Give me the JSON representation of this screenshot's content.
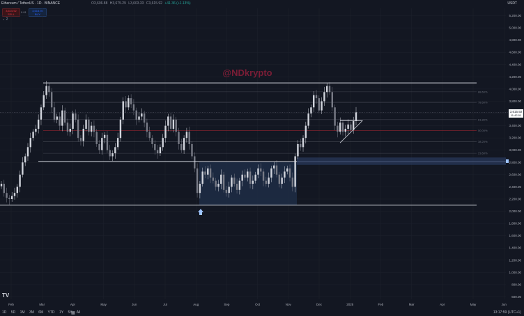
{
  "header": {
    "symbol_title": "Ethereum / TetherUS · 1D · BINANCE",
    "ohlc": {
      "o": "O3,606.88",
      "h": "H3,675.29",
      "l": "L3,603.33",
      "c": "C3,615.92",
      "chg": "+41.36 (+1.13%)"
    },
    "currency": "USDT",
    "sell_price": "3,615.92",
    "sell_label": "SELL",
    "buy_price": "3,615.93",
    "buy_label": "BUY",
    "spread": "0.01",
    "indicator_count": "2"
  },
  "watermark": "@NDkrypto",
  "last_price_label": "3,615.92",
  "countdown": "11:42:01",
  "bottom": {
    "ranges": [
      "1D",
      "5D",
      "1M",
      "3M",
      "6M",
      "YTD",
      "1Y",
      "5Y",
      "All"
    ],
    "clock": "13:17:59 (UTC+1)"
  },
  "colors": {
    "up": "#d1d4dc",
    "down": "#787b86",
    "line": "#d1d4dc",
    "zone": "#1f2d45",
    "fib_red": "#b22833"
  },
  "chart_data": {
    "type": "candlestick",
    "x_ticks": [
      "Feb",
      "Mar",
      "Apr",
      "May",
      "Jun",
      "Jul",
      "Aug",
      "Sep",
      "Oct",
      "Nov",
      "Dec",
      "2025",
      "Feb",
      "Mar",
      "Apr",
      "May",
      "Jun"
    ],
    "y_ticks": [
      "600.00",
      "800.00",
      "1,000.00",
      "1,200.00",
      "1,400.00",
      "1,600.00",
      "1,800.00",
      "2,000.00",
      "2,200.00",
      "2,400.00",
      "2,600.00",
      "2,800.00",
      "3,000.00",
      "3,200.00",
      "3,400.00",
      "3,600.00",
      "3,800.00",
      "4,000.00",
      "4,200.00",
      "4,400.00",
      "4,600.00",
      "4,800.00",
      "5,000.00",
      "5,200.00"
    ],
    "ylim": [
      560,
      5320
    ],
    "levels": [
      {
        "label": "88.60%",
        "value": 3955
      },
      {
        "label": "78.60%",
        "value": 3780
      },
      {
        "label": "61.80%",
        "value": 3500
      },
      {
        "label": "50.00%",
        "value": 3320
      },
      {
        "label": "38.20%",
        "value": 3140
      },
      {
        "label": "23.60%",
        "value": 2950
      }
    ],
    "resistance": 4100,
    "support": 2810,
    "range_low": 2100,
    "last_price": 3615.92,
    "candles_close": [
      2450,
      2300,
      2220,
      2200,
      2250,
      2300,
      2400,
      2600,
      2800,
      2900,
      3050,
      3200,
      3300,
      3350,
      3500,
      3700,
      3900,
      4050,
      3950,
      3700,
      3500,
      3550,
      3400,
      3650,
      3450,
      3300,
      3350,
      3600,
      3500,
      3200,
      3150,
      3350,
      3500,
      3300,
      3400,
      3300,
      3100,
      3000,
      3200,
      3250,
      3000,
      2900,
      2950,
      3050,
      3200,
      3500,
      3800,
      3700,
      3850,
      3750,
      3650,
      3500,
      3550,
      3600,
      3450,
      3300,
      3200,
      3100,
      3000,
      2950,
      3050,
      3200,
      3400,
      3550,
      3350,
      3500,
      3300,
      3100,
      3000,
      3200,
      3300,
      3100,
      2900,
      2700,
      2300,
      2450,
      2650,
      2600,
      2700,
      2550,
      2500,
      2400,
      2450,
      2600,
      2350,
      2300,
      2400,
      2550,
      2450,
      2350,
      2500,
      2600,
      2550,
      2650,
      2450,
      2500,
      2600,
      2700,
      2650,
      2500,
      2450,
      2550,
      2700,
      2750,
      2600,
      2450,
      2550,
      2650,
      2700,
      2550,
      2400,
      2900,
      3100,
      3050,
      3200,
      3400,
      3600,
      3700,
      3900,
      3850,
      3650,
      3800,
      3950,
      4050,
      3950,
      3700,
      3400,
      3300,
      3450,
      3300,
      3350,
      3420,
      3330,
      3480,
      3620
    ]
  }
}
